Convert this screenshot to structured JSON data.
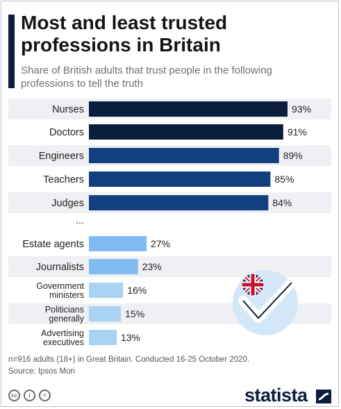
{
  "header": {
    "title": "Most and least trusted professions in Britain",
    "subtitle": "Share of British adults that trust people in the following professions to tell the truth"
  },
  "chart_data": {
    "type": "bar",
    "orientation": "horizontal",
    "title": "Most and least trusted professions in Britain",
    "subtitle": "Share of British adults that trust people in the following professions to tell the truth",
    "categories": [
      "Nurses",
      "Doctors",
      "Engineers",
      "Teachers",
      "Judges",
      "Estate agents",
      "Journalists",
      "Government ministers",
      "Politicians generally",
      "Advertising executives"
    ],
    "values": [
      93,
      91,
      89,
      85,
      84,
      27,
      23,
      16,
      15,
      13
    ],
    "value_labels": [
      "93%",
      "91%",
      "89%",
      "85%",
      "84%",
      "27%",
      "23%",
      "16%",
      "15%",
      "13%"
    ],
    "separator_label": "...",
    "unit": "%",
    "xlim": [
      0,
      100
    ],
    "grid": false,
    "bar_colors": [
      "#0b1d3d",
      "#0b1d3d",
      "#123f7f",
      "#123f7f",
      "#123f7f",
      "#7fbbf1",
      "#7fbbf1",
      "#a9d2f4",
      "#a9d2f4",
      "#a9d2f4"
    ]
  },
  "footer": {
    "note": "n=916 adults (18+) in Great Britain. Conducted 16-25 October 2020.",
    "source": "Source: Ipsos Mori",
    "brand": "statista",
    "license_icons": [
      "cc-icon",
      "by-icon",
      "nd-icon"
    ],
    "license_labels": [
      "cc",
      "i",
      "="
    ]
  },
  "decoration": {
    "icon": "uk-flag-checkmark-icon"
  }
}
